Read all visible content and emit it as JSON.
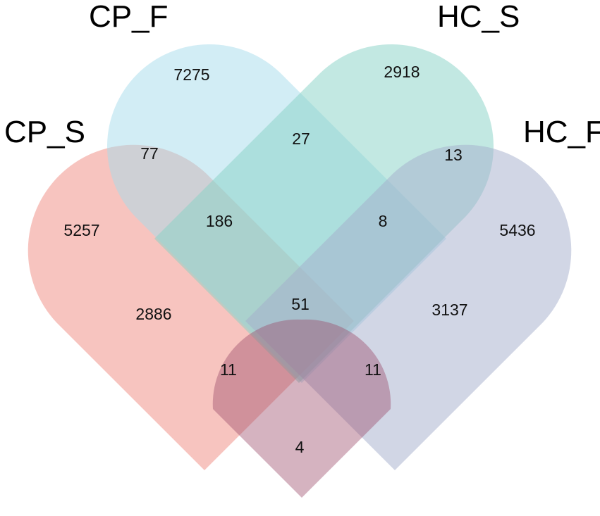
{
  "sets": [
    {
      "id": "cp_s",
      "label": "CP_S",
      "color": "#f08a80"
    },
    {
      "id": "cp_f",
      "label": "CP_F",
      "color": "#a6dcec"
    },
    {
      "id": "hc_s",
      "label": "HC_S",
      "color": "#86d2c6"
    },
    {
      "id": "hc_f",
      "label": "HC_F",
      "color": "#a4aecb"
    }
  ],
  "regions": {
    "cp_s_only": "5257",
    "cp_f_only": "7275",
    "hc_s_only": "2918",
    "hc_f_only": "5436",
    "cp_s_cp_f": "77",
    "cp_f_hc_s": "27",
    "hc_s_hc_f": "13",
    "cp_s_cp_f_hc_s": "186",
    "cp_f_hc_s_hc_f": "8",
    "cp_s_hc_s": "2886",
    "all_four": "51",
    "cp_f_hc_f": "3137",
    "cp_s_hc_s_hc_f": "11",
    "cp_s_cp_f_hc_f": "11",
    "cp_s_hc_f": "4"
  }
}
